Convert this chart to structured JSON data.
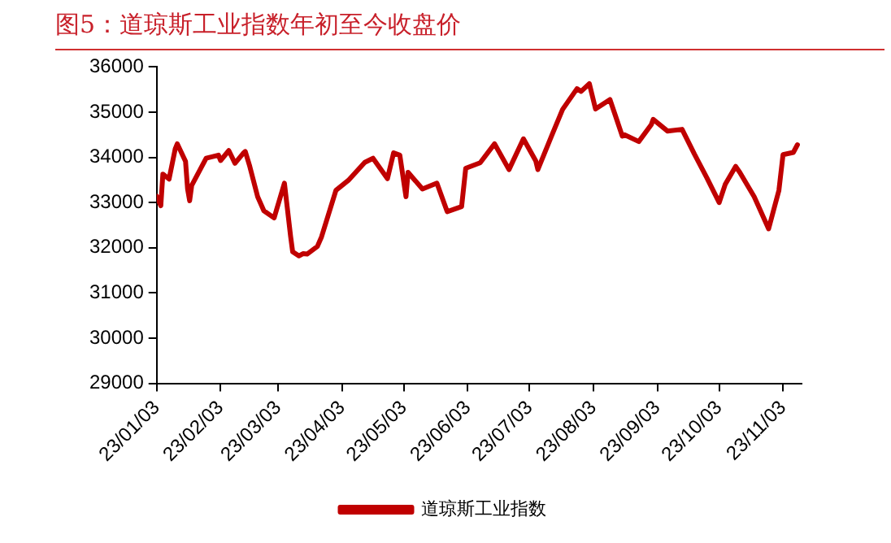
{
  "chart_data": {
    "type": "line",
    "title": "图5：道琼斯工业指数年初至今收盘价",
    "x": [
      "--01-03",
      "--01-05",
      "--01-06",
      "--01-09",
      "--01-12",
      "--01-13",
      "--01-17",
      "--01-18",
      "--01-19",
      "--01-20",
      "--01-27",
      "--02-02",
      "--02-03",
      "--02-07",
      "--02-10",
      "--02-14",
      "--02-15",
      "--02-17",
      "--02-21",
      "--02-24",
      "--03-01",
      "--03-06",
      "--03-09",
      "--03-10",
      "--03-13",
      "--03-15",
      "--03-17",
      "--03-22",
      "--03-24",
      "--03-31",
      "--04-06",
      "--04-14",
      "--04-18",
      "--04-25",
      "--04-28",
      "--05-01",
      "--05-04",
      "--05-05",
      "--05-12",
      "--05-19",
      "--05-24",
      "--05-31",
      "--06-02",
      "--06-09",
      "--06-16",
      "--06-23",
      "--06-30",
      "--07-06",
      "--07-07",
      "--07-14",
      "--07-19",
      "--07-26",
      "--07-28",
      "--08-01",
      "--08-04",
      "--08-11",
      "--08-17",
      "--08-18",
      "--08-25",
      "--08-31",
      "--09-01",
      "--09-08",
      "--09-15",
      "--09-21",
      "--09-27",
      "--10-03",
      "--10-06",
      "--10-11",
      "--10-13",
      "--10-20",
      "--10-27",
      "--11-01",
      "--11-03",
      "--11-08",
      "--11-10"
    ],
    "series": [
      {
        "name": "道琼斯工业指数",
        "color": "#c00000",
        "values": [
          33140,
          32930,
          33630,
          33520,
          34190,
          34300,
          33910,
          33300,
          33040,
          33380,
          33980,
          34050,
          33930,
          34150,
          33870,
          34090,
          34130,
          33830,
          33130,
          32820,
          32660,
          33430,
          32250,
          31910,
          31820,
          31870,
          31860,
          32030,
          32240,
          33270,
          33490,
          33890,
          33980,
          33530,
          34100,
          34050,
          33130,
          33670,
          33300,
          33430,
          32800,
          32910,
          33760,
          33880,
          34300,
          33730,
          34410,
          33920,
          33730,
          34510,
          35060,
          35520,
          35460,
          35630,
          35070,
          35280,
          34470,
          34500,
          34350,
          34720,
          34840,
          34580,
          34620,
          34070,
          33550,
          33000,
          33410,
          33800,
          33670,
          33130,
          32420,
          33270,
          34060,
          34110,
          34280
        ]
      }
    ],
    "xlim": [
      "--01-03",
      "--11-12"
    ],
    "xticks": [
      {
        "value": "--01-03",
        "label": "23/01/03"
      },
      {
        "value": "--02-03",
        "label": "23/02/03"
      },
      {
        "value": "--03-03",
        "label": "23/03/03"
      },
      {
        "value": "--04-03",
        "label": "23/04/03"
      },
      {
        "value": "--05-03",
        "label": "23/05/03"
      },
      {
        "value": "--06-03",
        "label": "23/06/03"
      },
      {
        "value": "--07-03",
        "label": "23/07/03"
      },
      {
        "value": "--08-03",
        "label": "23/08/03"
      },
      {
        "value": "--09-03",
        "label": "23/09/03"
      },
      {
        "value": "--10-03",
        "label": "23/10/03"
      },
      {
        "value": "--11-03",
        "label": "23/11/03"
      }
    ],
    "ylim": [
      29000,
      36000
    ],
    "yticks": [
      29000,
      30000,
      31000,
      32000,
      33000,
      34000,
      35000,
      36000
    ],
    "grid": false,
    "legend": "bottom",
    "marker": "none",
    "line_style": "solid"
  }
}
